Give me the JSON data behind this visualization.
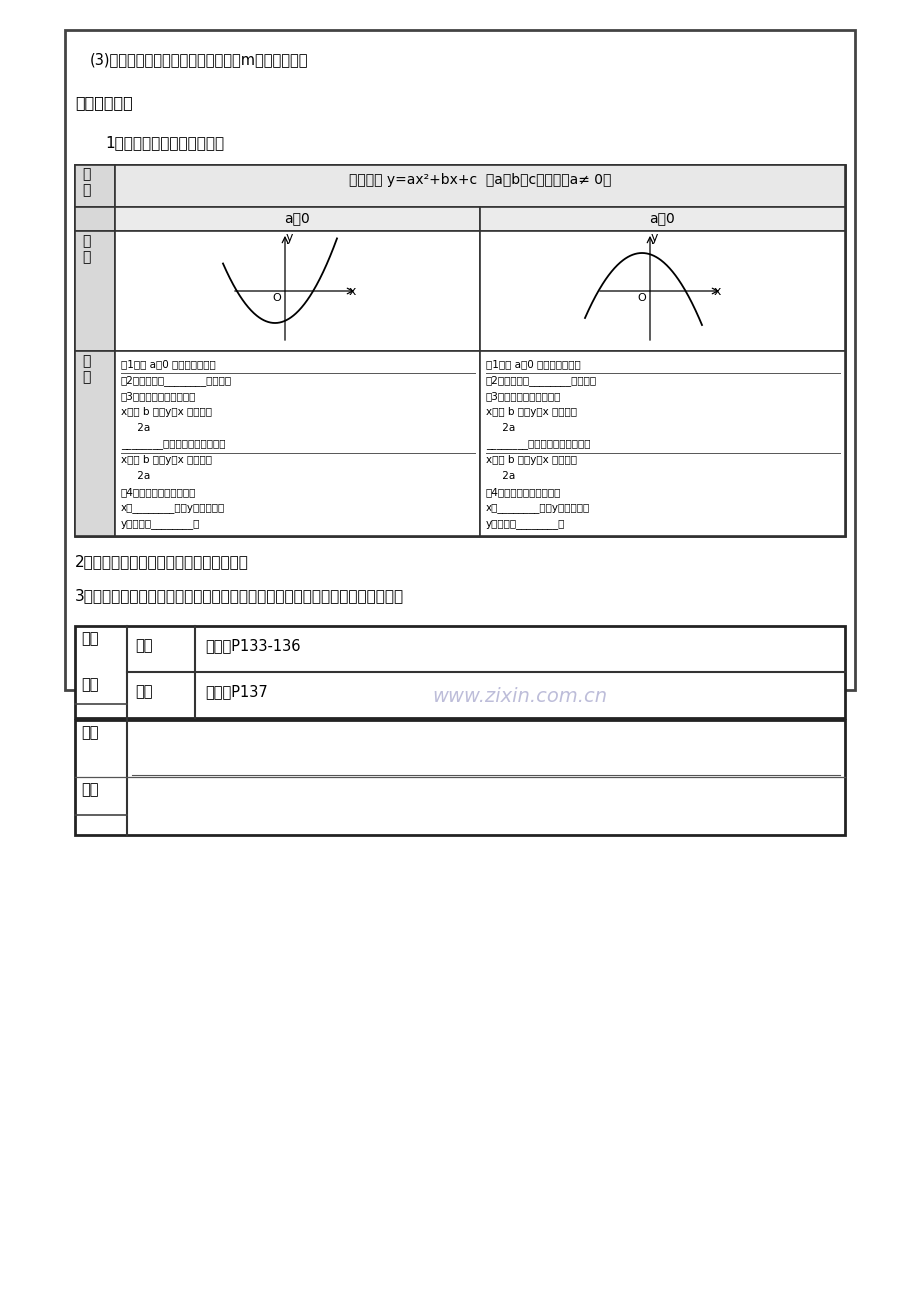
{
  "bg_color": "#ffffff",
  "line1": "(3)若函数图象的顶点在第四象限，求m的取値范围。",
  "section3": "三、课堂小结",
  "item1": "1．投影：让学生完成下表：",
  "table_header1": "二次函数 y=ax²+bx+c",
  "table_header2": "  （a、b、c为常数，a≠ 0）",
  "col1_header": "a＞0",
  "col2_header": "a＜0",
  "lp1": "（1）当 a＞0 时，抛物线开口",
  "lp2": "（2）对称轴是________。顶点是",
  "lp3": "（3）在对称轴左侧，即为",
  "lp4": "x＜－ b 时，y随x 的增大而",
  "lp5": "     2a",
  "lp6": "________；在对称轴右侧，即当",
  "lp7": "x＞－ b 时，y随x 的增大而",
  "lp8": "     2a",
  "lp9": "（4）抛物线有最低点，当",
  "lp10": "x＝________时，y有最小値，",
  "lp11": "y最小値＝________。",
  "rp1": "（1）当 a＜0 时，抛物线开口",
  "rp2": "（2）对称轴是________。顶点是",
  "rp3": "（3）在对称轴左侧，即为",
  "rp4": "x＜－ b 时，y随x 的增大而",
  "rp5": "     2a",
  "rp6": "________；在对称轴右侧，即当",
  "rp7": "x＞－ b 时，y随x 的增大而",
  "rp8": "     2a",
  "rp9": "（4）抛物线有最高点，当",
  "rp10": "x＝________时，y有最大値，",
  "rp11": "y最大値＝________。",
  "item2": "2．归纳二次函数三种解析式的实际应用。",
  "item3": "3．强调二次函数与方程、圆、三角形，三角函数等知识综合的综合题解题思路。",
  "hw_row1_c1": "作业",
  "hw_row1_c2": "必做",
  "hw_row1_c3": "练习册P133-136",
  "hw_row2_c1": "设计",
  "hw_row2_c2": "选做",
  "hw_row2_c3": "练习册P137",
  "reflect_c1a": "教学",
  "reflect_c1b": "反思",
  "watermark": "www.zixin.com.cn"
}
